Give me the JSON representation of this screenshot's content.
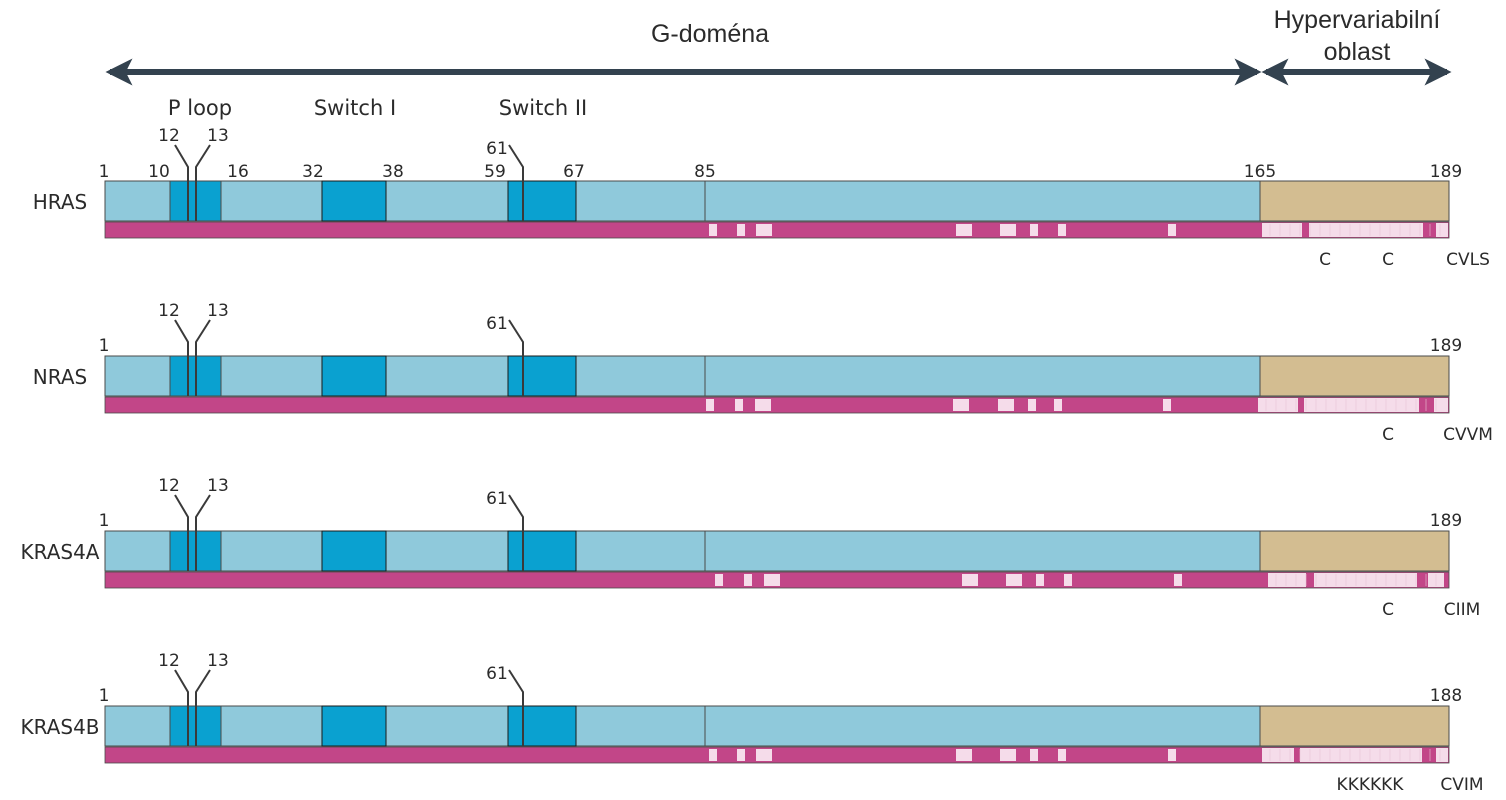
{
  "header": {
    "g_domain": "G-doména",
    "hvr_line1": "Hypervariabilní",
    "hvr_line2": "oblast"
  },
  "regions": {
    "p_loop": "P loop",
    "switch1": "Switch I",
    "switch2": "Switch II"
  },
  "position_labels": [
    "1",
    "10",
    "16",
    "32",
    "38",
    "59",
    "67",
    "85",
    "165",
    "189"
  ],
  "mutation_sites": [
    "12",
    "13",
    "61"
  ],
  "proteins": [
    {
      "name": "HRAS",
      "end_label": "189",
      "motifs": [
        "C",
        "C",
        "CVLS"
      ]
    },
    {
      "name": "NRAS",
      "end_label": "189",
      "motifs": [
        "C",
        "CVVM"
      ]
    },
    {
      "name": "KRAS4A",
      "end_label": "189",
      "motifs": [
        "C",
        "CIIM"
      ]
    },
    {
      "name": "KRAS4B",
      "end_label": "188",
      "motifs": [
        "KKKKKK",
        "CVIM"
      ]
    }
  ],
  "colors": {
    "domain_light": "#8fc9db",
    "domain_dark": "#0aa1d0",
    "hvr": "#d3bd91",
    "conservation_bar": "#c24688",
    "variable_residue": "#f5dcea",
    "arrow": "#33424f",
    "outline": "#4a4a4a"
  }
}
